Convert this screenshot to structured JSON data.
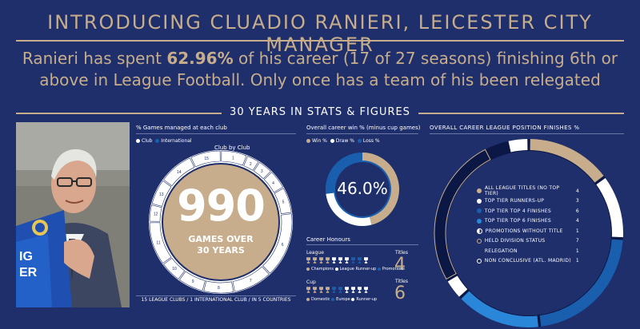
{
  "header": {
    "title": "INTRODUCING CLUADIO RANIERI, LEICESTER CITY MANAGER",
    "headline_pre": "Ranieri has spent ",
    "headline_bold": "62.96%",
    "headline_post": " of his career (17 of 27 seasons) finishing 6th or above in League Football. Only once has a team of his been relegated",
    "section": "30 YEARS IN STATS & FIGURES"
  },
  "photo": {
    "shirt_text_1": "IG",
    "shirt_text_2": "ER"
  },
  "colors": {
    "background": "#1f2f6b",
    "gold": "#c7ad8b",
    "blue": "#1a5fae",
    "light_blue": "#2a86d8",
    "white": "#ffffff",
    "dark_ring": "#0b1745"
  },
  "games_panel": {
    "label": "% Games managed at each club",
    "legend": [
      "Club",
      "International"
    ],
    "club_by_club": "Club by Club",
    "center_number": "990",
    "center_line1": "GAMES OVER",
    "center_line2": "30 YEARS",
    "footer": "15 LEAGUE CLUBS / 1 INTERNATIONAL CLUB / IN 5 COUNTRIES",
    "segment_labels": [
      "1",
      "2",
      "3",
      "4",
      "5",
      "6",
      "7",
      "8",
      "9",
      "10",
      "11",
      "12",
      "13",
      "14",
      "15"
    ]
  },
  "winrate_panel": {
    "label": "Overall career win % (minus cup games)",
    "legend": [
      "Win %",
      "Draw %",
      "Loss %"
    ],
    "value_text": "46.0%"
  },
  "honours_panel": {
    "label": "Career Honours",
    "league_label": "League",
    "league_titles_label": "Titles",
    "league_titles": "4",
    "league_legend": [
      "Champions",
      "League Runner-up",
      "Promotions"
    ],
    "cup_label": "Cup",
    "cup_titles_label": "Titles",
    "cup_titles": "6",
    "cup_legend": [
      "Domestic",
      "Europe",
      "Runner-up"
    ]
  },
  "chart_data": [
    {
      "type": "pie",
      "title": "Overall career win % (minus cup games)",
      "categories": [
        "Win %",
        "Draw %",
        "Loss %"
      ],
      "values": [
        46.0,
        27.0,
        27.0
      ],
      "center_label": "46.0%"
    },
    {
      "type": "pie",
      "title": "Overall career league position finishes %",
      "categories": [
        "All league titles (no top tier)",
        "Top tier runners-up",
        "Top tier top 4 finishes",
        "Top tier top 6 finishes",
        "Promotions without title",
        "Held division status",
        "Relegation",
        "Non conclusive (Atl. Madrid)"
      ],
      "values": [
        4,
        3,
        6,
        4,
        1,
        7,
        1,
        1
      ],
      "legend_position": "center"
    },
    {
      "type": "pie",
      "title": "% Games managed at each club",
      "categories": [
        "1",
        "2",
        "3",
        "4",
        "5",
        "6",
        "7",
        "8",
        "9",
        "10",
        "11",
        "12",
        "13",
        "14",
        "15"
      ],
      "values": [
        6.0,
        3.0,
        3.5,
        4.5,
        6.0,
        15.0,
        9.0,
        7.0,
        6.0,
        5.0,
        10.0,
        4.0,
        6.0,
        8.0,
        7.0
      ],
      "center_label": "990"
    }
  ],
  "positions_panel": {
    "label": "OVERALL CAREER LEAGUE POSITION FINISHES %",
    "rows": [
      {
        "label": "ALL LEAGUE TITLES (NO TOP TIER)",
        "count": "4",
        "color": "#c7ad8b",
        "style": "solid"
      },
      {
        "label": "TOP TIER RUNNERS-UP",
        "count": "3",
        "color": "#ffffff",
        "style": "solid"
      },
      {
        "label": "TOP TIER TOP 4 FINISHES",
        "count": "6",
        "color": "#1a5fae",
        "style": "solid"
      },
      {
        "label": "TOP TIER TOP 6 FINISHES",
        "count": "4",
        "color": "#2a86d8",
        "style": "solid"
      },
      {
        "label": "PROMOTIONS WITHOUT TITLE",
        "count": "1",
        "color": "#ffffff",
        "style": "half"
      },
      {
        "label": "HELD DIVISION STATUS",
        "count": "7",
        "color": "#c7ad8b",
        "style": "ring"
      },
      {
        "label": "RELEGATION",
        "count": "1",
        "color": "#1f2f6b",
        "style": "none"
      },
      {
        "label": "NON CONCLUSIVE (ATL. MADRID)",
        "count": "1",
        "color": "#ffffff",
        "style": "ring"
      }
    ]
  }
}
